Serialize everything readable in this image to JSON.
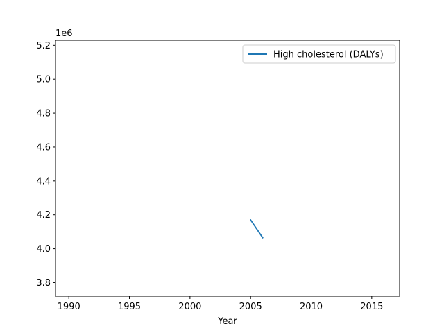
{
  "chart_data": {
    "type": "line",
    "title": "",
    "xlabel": "Year",
    "ylabel": "",
    "y_offset_label": "1e6",
    "xlim": [
      1988.9,
      2017.3
    ],
    "ylim": [
      3.72,
      5.23
    ],
    "x_ticks": [
      1990,
      1995,
      2000,
      2005,
      2010,
      2015
    ],
    "x_tick_labels": [
      "1990",
      "1995",
      "2000",
      "2005",
      "2010",
      "2015"
    ],
    "y_ticks": [
      3.8,
      4.0,
      4.2,
      4.4,
      4.6,
      4.8,
      5.0,
      5.2
    ],
    "y_tick_labels": [
      "3.8",
      "4.0",
      "4.2",
      "4.4",
      "4.6",
      "4.8",
      "5.0",
      "5.2"
    ],
    "grid": false,
    "legend_position": "top-right",
    "series": [
      {
        "name": "High cholesterol (DALYs)",
        "color": "#1f77b4",
        "x": [
          2005,
          2006
        ],
        "y": [
          4.17,
          4.065
        ]
      }
    ]
  }
}
